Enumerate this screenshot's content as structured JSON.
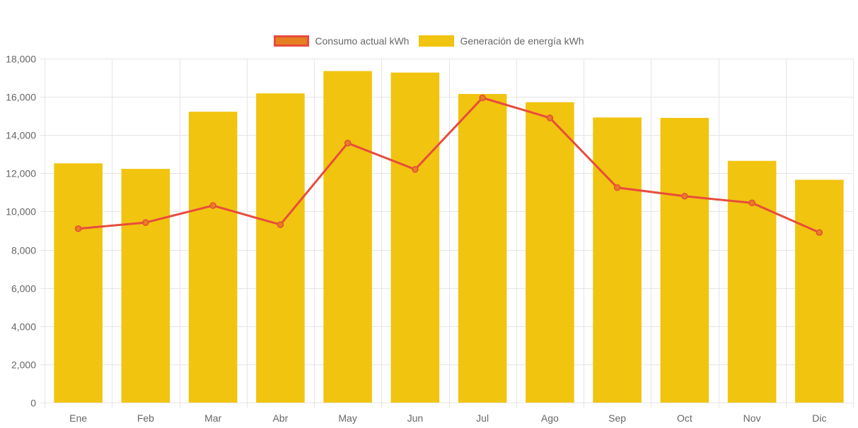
{
  "chart_data": {
    "type": "bar",
    "categories": [
      "Ene",
      "Feb",
      "Mar",
      "Abr",
      "May",
      "Jun",
      "Jul",
      "Ago",
      "Sep",
      "Oct",
      "Nov",
      "Dic"
    ],
    "series": [
      {
        "name": "Consumo actual kWh",
        "type": "line",
        "values": [
          9100,
          9420,
          10310,
          9310,
          13580,
          12200,
          15950,
          14900,
          11250,
          10800,
          10450,
          8900
        ]
      },
      {
        "name": "Generación de energía kWh",
        "type": "bar",
        "values": [
          12520,
          12230,
          15220,
          16180,
          17350,
          17270,
          16150,
          15720,
          14920,
          14900,
          12650,
          11660
        ]
      }
    ],
    "ylim": [
      0,
      18000
    ],
    "yticks": [
      0,
      2000,
      4000,
      6000,
      8000,
      10000,
      12000,
      14000,
      16000,
      18000
    ],
    "grid": true,
    "legend_position": "top"
  },
  "colors": {
    "line": "#e74c3c",
    "line_point_fill": "#e67e22",
    "bar": "#f1c40f",
    "grid": "#e5e5e5",
    "axis_text": "#666666"
  }
}
